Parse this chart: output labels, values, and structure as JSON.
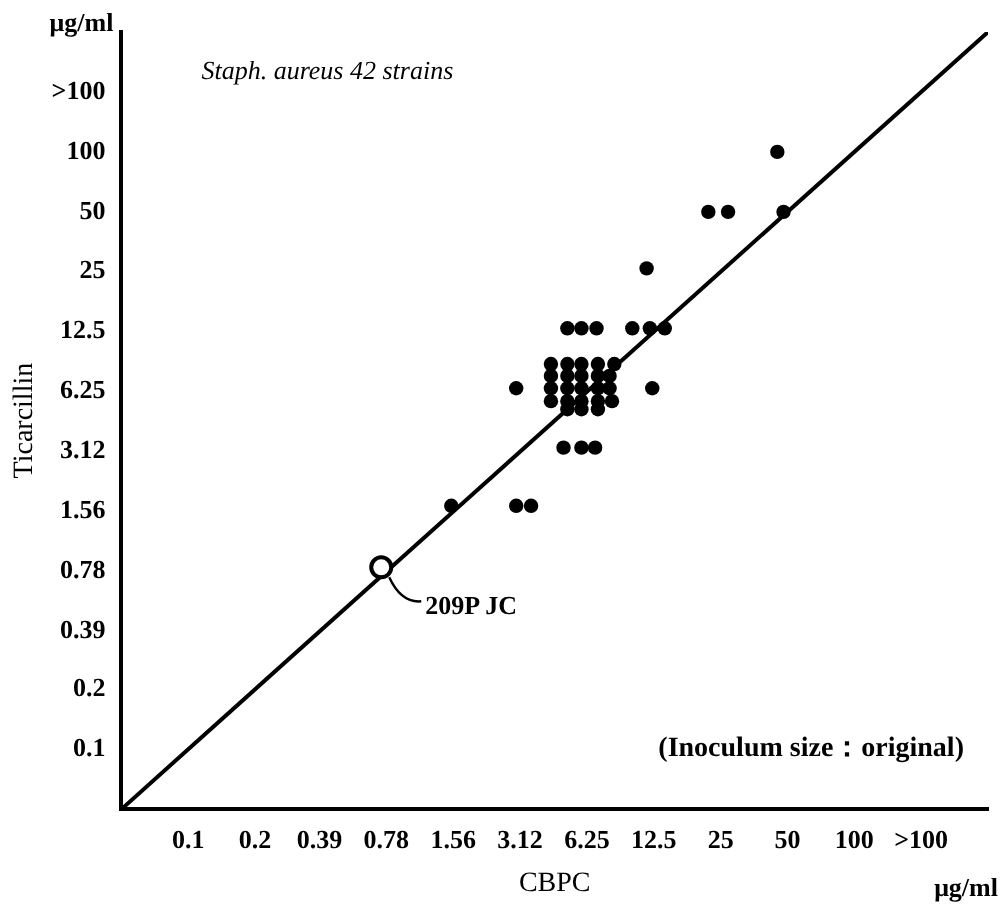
{
  "chart_data": {
    "type": "scatter",
    "title": "Staph. aureus 42 strains",
    "xlabel": "CBPC",
    "ylabel": "Ticarcillin",
    "annotations": [
      "μg/ml",
      "μg/ml",
      "(Inoculum size：original)",
      {
        "text": "209P JC",
        "x": 0.74,
        "y": 0.82
      }
    ],
    "log": "xy",
    "grid": false,
    "legend": false,
    "marker": "circle",
    "xlim": [
      0.05,
      400
    ],
    "ylim": [
      0.05,
      400
    ],
    "xticks": [
      0.1,
      0.2,
      0.39,
      0.78,
      1.56,
      3.12,
      6.25,
      12.5,
      25,
      50,
      100,
      {
        "value": 200,
        "label": ">100"
      }
    ],
    "yticks": [
      0.1,
      0.2,
      0.39,
      0.78,
      1.56,
      3.12,
      6.25,
      12.5,
      25,
      50,
      100,
      {
        "value": 200,
        "label": ">100"
      }
    ],
    "series": [
      {
        "type": "line",
        "marker": "none",
        "color": "#000000",
        "x": [
          0.05,
          400
        ],
        "values": [
          0.05,
          400
        ]
      },
      {
        "color": "#000000",
        "x": [
          22,
          27,
          48,
          45,
          11.6,
          5.1,
          5.9,
          6.9,
          10,
          12,
          14,
          4.3,
          5.1,
          5.9,
          7,
          8.3,
          4.3,
          5.1,
          5.9,
          7,
          7.9,
          3,
          4.3,
          5.1,
          5.9,
          7,
          7.9,
          12.3,
          4.3,
          5.1,
          5.9,
          7,
          8.1,
          5.1,
          5.9,
          7,
          4.9,
          5.9,
          6.8,
          3,
          3.5,
          1.53
        ],
        "values": [
          50,
          50,
          50,
          100,
          26,
          13,
          13,
          13,
          13,
          13,
          13,
          8.6,
          8.6,
          8.6,
          8.6,
          8.6,
          7.5,
          7.5,
          7.5,
          7.5,
          7.5,
          6.5,
          6.5,
          6.5,
          6.5,
          6.5,
          6.5,
          6.5,
          5.6,
          5.6,
          5.6,
          5.6,
          5.6,
          5.1,
          5.1,
          5.1,
          3.27,
          3.27,
          3.27,
          1.67,
          1.67,
          1.67
        ]
      },
      {
        "color": "#000000",
        "x": [
          0.74
        ],
        "values": [
          0.82
        ]
      }
    ]
  }
}
